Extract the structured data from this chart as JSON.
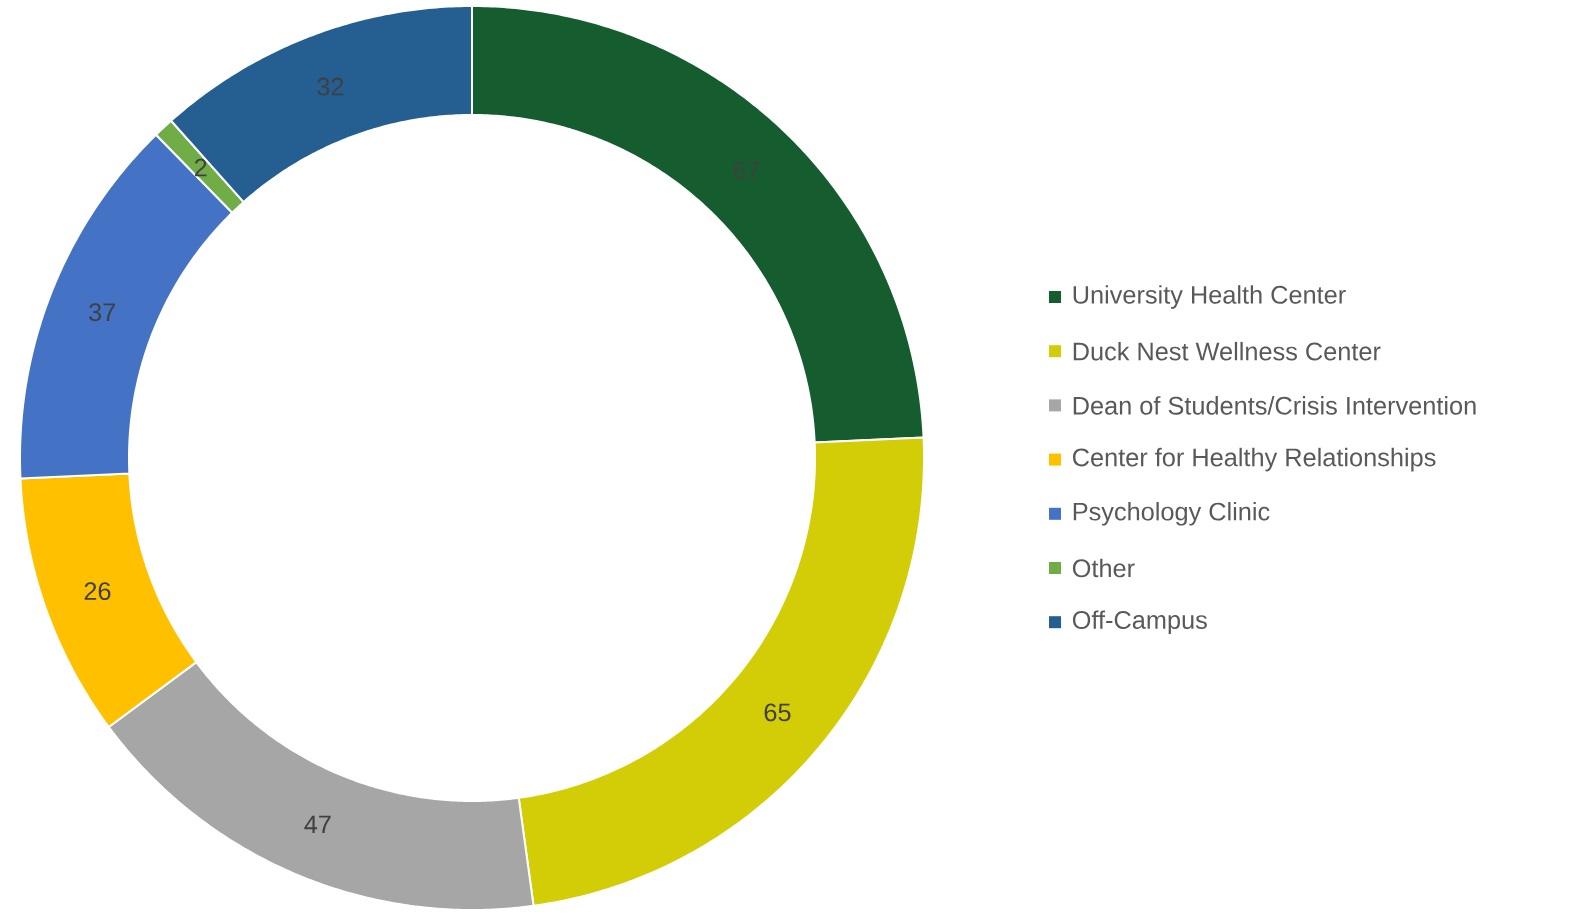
{
  "chart_data": {
    "type": "donut",
    "categories": [
      "University Health Center",
      "Duck Nest Wellness Center",
      "Dean of Students/Crisis Intervention",
      "Center for Healthy Relationships",
      "Psychology Clinic",
      "Other",
      "Off-Campus"
    ],
    "values": [
      67,
      65,
      47,
      26,
      37,
      2,
      32
    ],
    "colors": [
      "#155d2e",
      "#d2cd07",
      "#a6a6a6",
      "#ffc000",
      "#4472c4",
      "#70ad47",
      "#255e91"
    ],
    "data_labels": true,
    "legend": "right"
  }
}
